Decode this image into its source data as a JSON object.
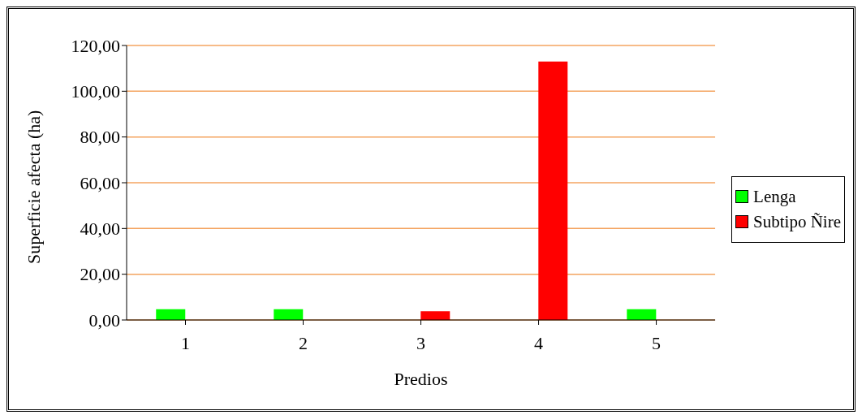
{
  "chart_data": {
    "type": "bar",
    "xlabel": "Predios",
    "ylabel": "Superficie afecta (ha)",
    "categories": [
      "1",
      "2",
      "3",
      "4",
      "5"
    ],
    "series": [
      {
        "name": "Lenga",
        "color": "#00ff00",
        "values": [
          4.7,
          4.7,
          null,
          null,
          4.7
        ]
      },
      {
        "name": "Subtipo Ñire",
        "color": "#ff0000",
        "values": [
          null,
          null,
          3.8,
          113,
          null
        ]
      }
    ],
    "ylim": [
      0,
      120
    ],
    "yticks": [
      {
        "value": 0,
        "label": "0,00"
      },
      {
        "value": 20,
        "label": "20,00"
      },
      {
        "value": 40,
        "label": "40,00"
      },
      {
        "value": 60,
        "label": "60,00"
      },
      {
        "value": 80,
        "label": "80,00"
      },
      {
        "value": 100,
        "label": "100,00"
      },
      {
        "value": 120,
        "label": "120,00"
      }
    ],
    "grid": "y",
    "legend": "right"
  }
}
